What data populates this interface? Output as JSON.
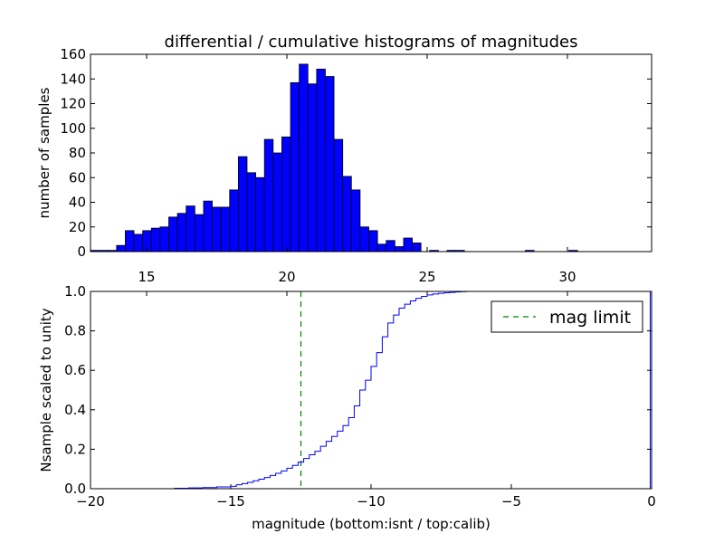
{
  "chart_data": [
    {
      "type": "bar",
      "title": "differential / cumulative histograms of magnitudes",
      "ylabel": "number of samples",
      "xlabel": "",
      "xlim": [
        13.0,
        33.0
      ],
      "ylim": [
        0,
        160
      ],
      "xticks": [
        15,
        20,
        25,
        30
      ],
      "yticks": [
        0,
        20,
        40,
        60,
        80,
        100,
        120,
        140,
        160
      ],
      "bin_start": 13.0,
      "bin_width": 0.31,
      "color": "#0000ff",
      "values": [
        1,
        1,
        1,
        5,
        17,
        14,
        17,
        19,
        20,
        28,
        31,
        37,
        30,
        41,
        36,
        36,
        50,
        77,
        64,
        60,
        91,
        80,
        93,
        137,
        152,
        136,
        148,
        142,
        91,
        61,
        50,
        20,
        17,
        6,
        9,
        4,
        11,
        7,
        0,
        1,
        0,
        1,
        1,
        0,
        0,
        0,
        0,
        0,
        0,
        0,
        1,
        0,
        0,
        0,
        0,
        1,
        0,
        0,
        0,
        0,
        0,
        0,
        0,
        0,
        0,
        0,
        0,
        0,
        0,
        0,
        0,
        0,
        0,
        0,
        0,
        0,
        0,
        0,
        0,
        0,
        0,
        0,
        0,
        0,
        0,
        0,
        0,
        1,
        0,
        0,
        0,
        0,
        0,
        0,
        0,
        0,
        0,
        0,
        0,
        0,
        0,
        0,
        0,
        0,
        0,
        0,
        0,
        0,
        0,
        0,
        0,
        0,
        0,
        0,
        1,
        0,
        0,
        0
      ]
    },
    {
      "type": "line",
      "step": true,
      "xlabel": "magnitude (bottom:isnt / top:calib)",
      "ylabel": "Nsample scaled to unity",
      "xlim": [
        -20,
        0
      ],
      "ylim": [
        0.0,
        1.0
      ],
      "xticks": [
        -20,
        -15,
        -10,
        -5,
        0
      ],
      "yticks": [
        0.0,
        0.2,
        0.4,
        0.6,
        0.8,
        1.0
      ],
      "ytick_labels": [
        "0.0",
        "0.2",
        "0.4",
        "0.6",
        "0.8",
        "1.0"
      ],
      "series": [
        {
          "name": "cumulative",
          "color": "#0000ff",
          "x": [
            -20.0,
            -17.0,
            -16.5,
            -16.0,
            -15.5,
            -15.0,
            -14.8,
            -14.6,
            -14.4,
            -14.2,
            -14.0,
            -13.8,
            -13.6,
            -13.4,
            -13.2,
            -13.0,
            -12.8,
            -12.6,
            -12.4,
            -12.2,
            -12.0,
            -11.8,
            -11.6,
            -11.4,
            -11.2,
            -11.0,
            -10.8,
            -10.6,
            -10.4,
            -10.2,
            -10.0,
            -9.8,
            -9.6,
            -9.4,
            -9.2,
            -9.0,
            -8.8,
            -8.6,
            -8.4,
            -8.2,
            -8.0,
            -7.8,
            -7.6,
            -7.4,
            -7.2,
            -7.0,
            -6.8,
            -6.6,
            -0.05
          ],
          "y": [
            0.0,
            0.002,
            0.004,
            0.006,
            0.009,
            0.012,
            0.02,
            0.026,
            0.032,
            0.04,
            0.048,
            0.057,
            0.067,
            0.078,
            0.09,
            0.104,
            0.118,
            0.135,
            0.153,
            0.172,
            0.19,
            0.215,
            0.24,
            0.265,
            0.292,
            0.32,
            0.36,
            0.42,
            0.5,
            0.55,
            0.62,
            0.69,
            0.77,
            0.84,
            0.88,
            0.915,
            0.935,
            0.952,
            0.965,
            0.975,
            0.982,
            0.987,
            0.99,
            0.993,
            0.995,
            0.997,
            0.999,
            1.0,
            1.0
          ]
        }
      ],
      "vline": {
        "x": -12.5,
        "label": "mag limit",
        "color": "#008000"
      },
      "legend": {
        "label": "mag limit",
        "position": "top-right"
      },
      "top_axis": {
        "tick_values": [
          15,
          20,
          25,
          30
        ],
        "data_xlim": [
          13.0,
          33.0
        ]
      }
    }
  ]
}
